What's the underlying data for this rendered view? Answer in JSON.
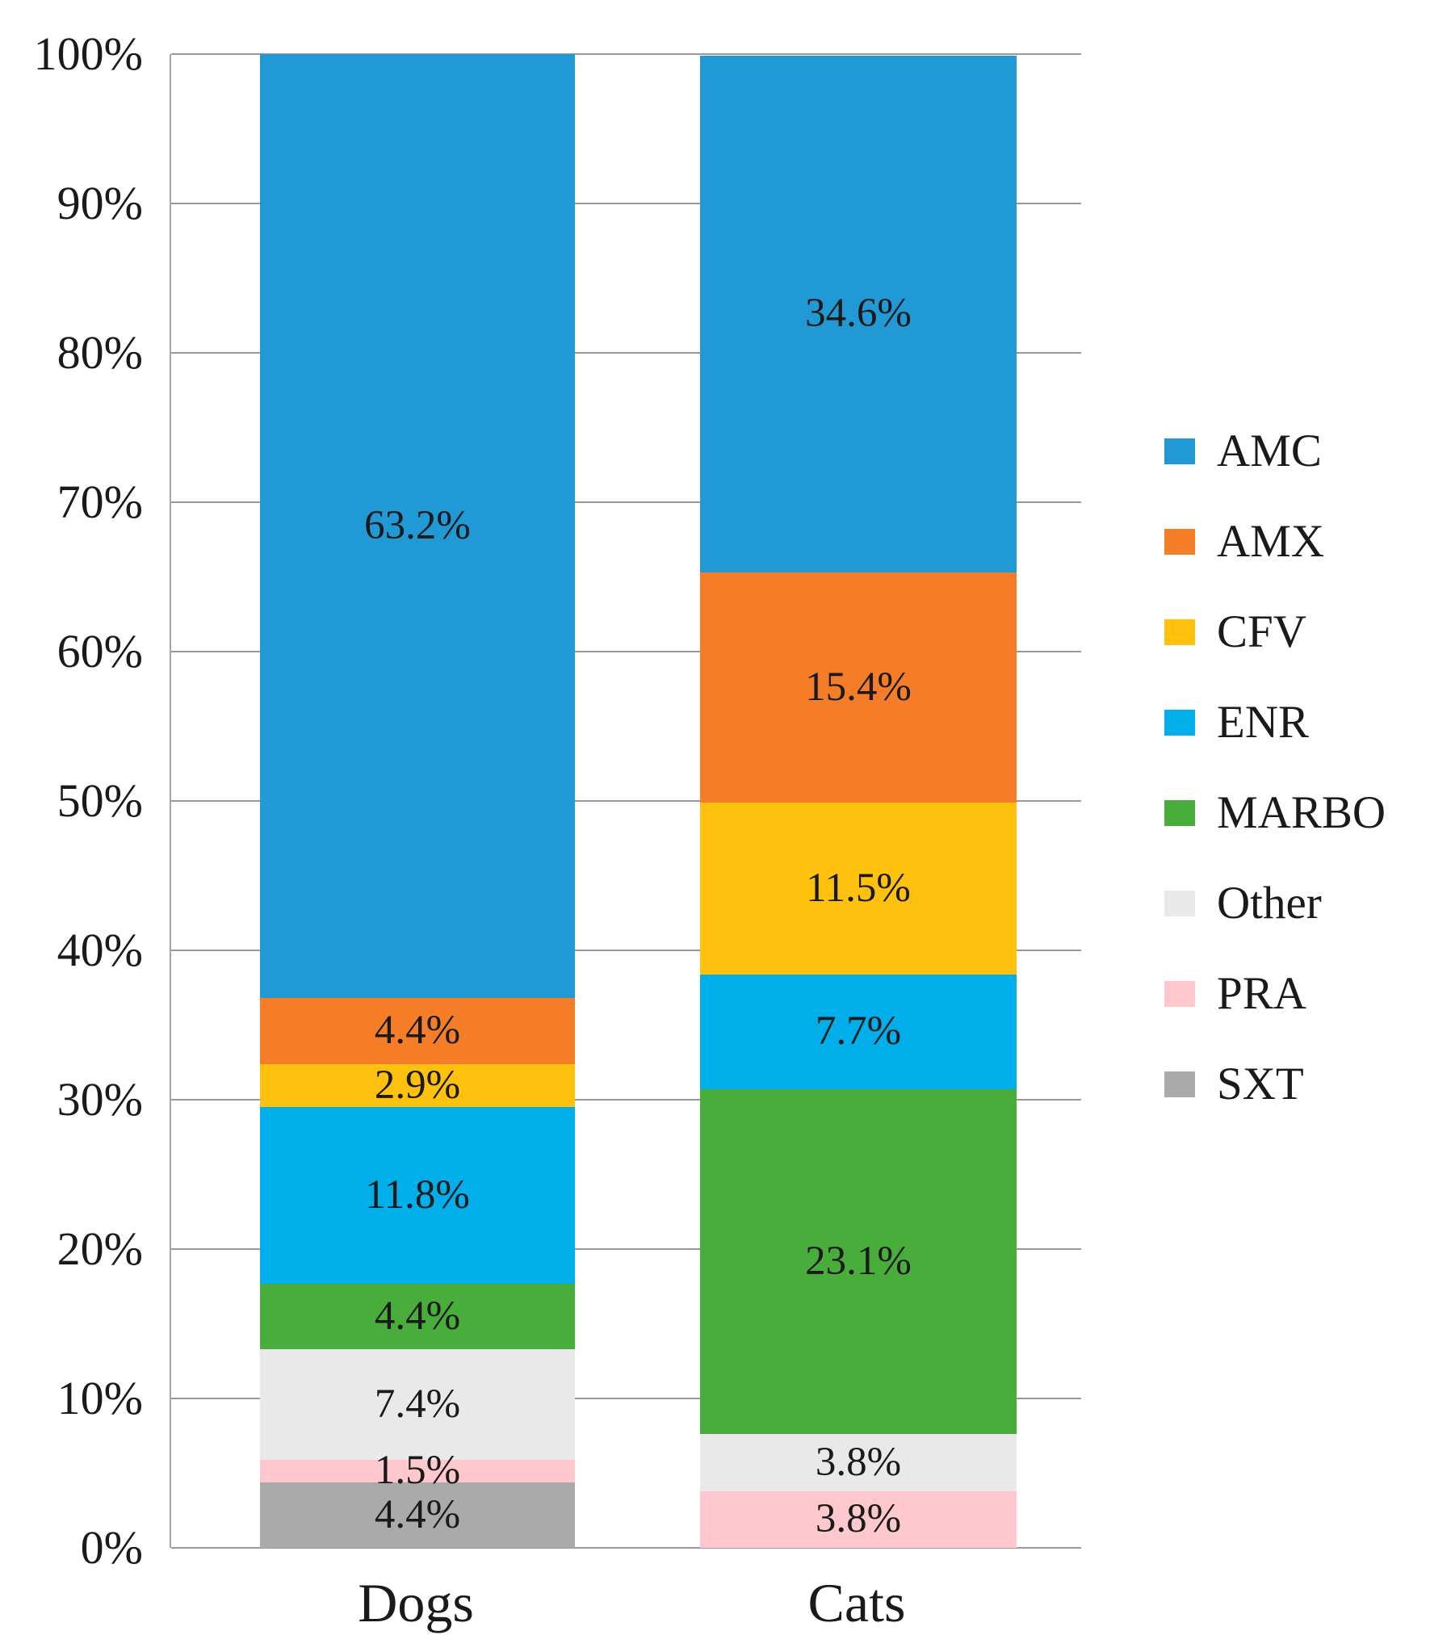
{
  "chart_data": {
    "type": "bar",
    "subtype": "stacked-100-percent-column",
    "title": "",
    "xlabel": "",
    "ylabel": "",
    "categories": [
      "Dogs",
      "Cats"
    ],
    "series": [
      {
        "name": "AMC",
        "color": "#2199D5",
        "values": [
          63.2,
          34.6
        ],
        "labels": [
          "63.2%",
          "34.6%"
        ]
      },
      {
        "name": "AMX",
        "color": "#F67D28",
        "values": [
          4.4,
          15.4
        ],
        "labels": [
          "4.4%",
          "15.4%"
        ]
      },
      {
        "name": "CFV",
        "color": "#FEC10D",
        "values": [
          2.9,
          11.5
        ],
        "labels": [
          "2.9%",
          "11.5%"
        ]
      },
      {
        "name": "ENR",
        "color": "#00AEE9",
        "values": [
          11.8,
          7.7
        ],
        "labels": [
          "11.8%",
          "7.7%"
        ]
      },
      {
        "name": "MARBO",
        "color": "#49AD3B",
        "values": [
          4.4,
          23.1
        ],
        "labels": [
          "4.4%",
          "23.1%"
        ]
      },
      {
        "name": "Other",
        "color": "#E9E9E9",
        "values": [
          7.4,
          3.8
        ],
        "labels": [
          "7.4%",
          "3.8%"
        ]
      },
      {
        "name": "PRA",
        "color": "#FFC8CE",
        "values": [
          1.5,
          3.8
        ],
        "labels": [
          "1.5%",
          "3.8%"
        ]
      },
      {
        "name": "SXT",
        "color": "#AAAAAA",
        "values": [
          4.4,
          0
        ],
        "labels": [
          "4.4%",
          ""
        ]
      }
    ],
    "stack_order_bottom_to_top": [
      "SXT",
      "PRA",
      "Other",
      "MARBO",
      "ENR",
      "CFV",
      "AMX",
      "AMC"
    ],
    "y_ticks": [
      "0%",
      "10%",
      "20%",
      "30%",
      "40%",
      "50%",
      "60%",
      "70%",
      "80%",
      "90%",
      "100%"
    ],
    "ylim": [
      0,
      100
    ],
    "grid": true,
    "gridline_color": "#999999",
    "axis_color": "#A6A6A6",
    "legend_position": "right",
    "data_label_format": "percent-one-decimal"
  }
}
